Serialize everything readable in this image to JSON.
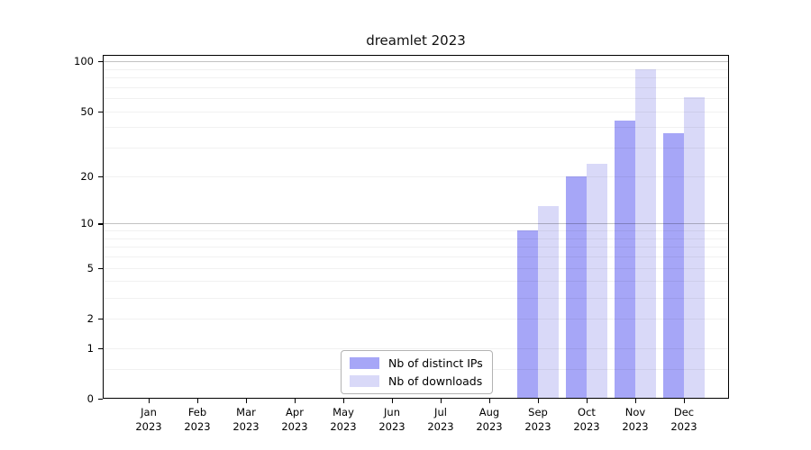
{
  "chart_data": {
    "type": "bar",
    "title": "dreamlet 2023",
    "categories": [
      "Jan 2023",
      "Feb 2023",
      "Mar 2023",
      "Apr 2023",
      "May 2023",
      "Jun 2023",
      "Jul 2023",
      "Aug 2023",
      "Sep 2023",
      "Oct 2023",
      "Nov 2023",
      "Dec 2023"
    ],
    "series": [
      {
        "name": "Nb of distinct IPs",
        "color": "#a6a6f7",
        "values": [
          0,
          0,
          0,
          0,
          0,
          0,
          0,
          0,
          9,
          20,
          44,
          37
        ]
      },
      {
        "name": "Nb of downloads",
        "color": "#d9d9f8",
        "values": [
          0,
          0,
          0,
          0,
          0,
          0,
          0,
          0,
          13,
          24,
          89,
          61
        ]
      }
    ],
    "xlabel": "",
    "ylabel": "",
    "yscale": "log1p",
    "ylim": [
      0,
      105
    ],
    "ytick_values": [
      0,
      1,
      2,
      5,
      10,
      20,
      50,
      100
    ],
    "ytick_labels": [
      "0",
      "1",
      "2",
      "5",
      "10",
      "20",
      "50",
      "100"
    ],
    "minor_grid_values": [
      0.5,
      1,
      2,
      3,
      4,
      5,
      6,
      7,
      8,
      9,
      10,
      20,
      30,
      40,
      50,
      60,
      70,
      80,
      90,
      100
    ],
    "major_grid_values": [
      10,
      100
    ],
    "grid": true,
    "legend_position": "inside-bottom-center"
  },
  "colors": {
    "bar_distinct_ips": "#a6a6f7",
    "bar_downloads": "#d9d9f8",
    "axis": "#000000",
    "legend_border": "#b3b3b3"
  }
}
